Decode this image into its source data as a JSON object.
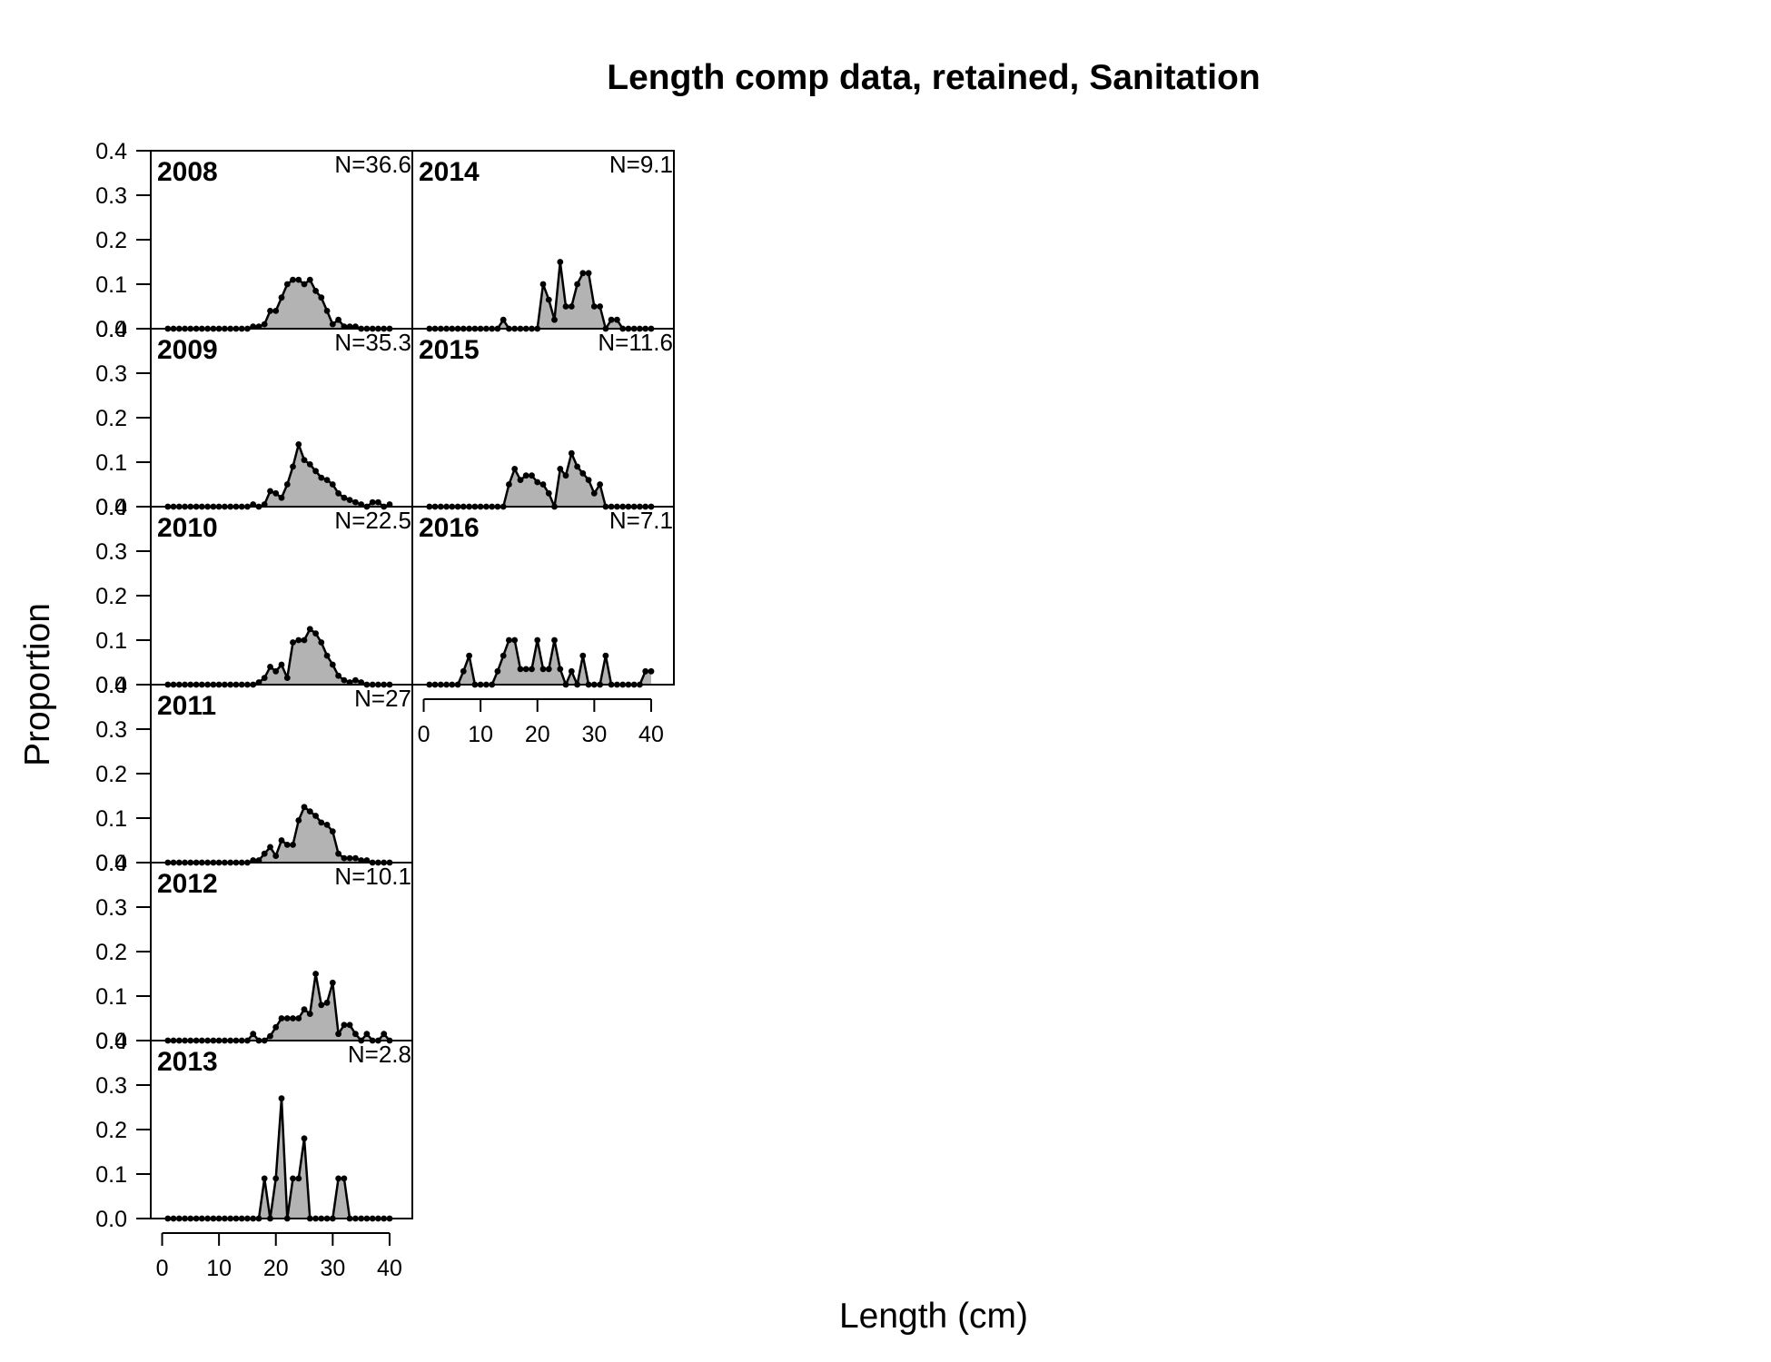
{
  "chart_data": {
    "type": "area",
    "title": "Length comp data, retained, Sanitation",
    "xlabel": "Length (cm)",
    "ylabel": "Proportion",
    "xlim": [
      -2,
      44
    ],
    "ylim": [
      0,
      0.4
    ],
    "x_ticks": [
      "0",
      "10",
      "20",
      "30",
      "40"
    ],
    "y_ticks": [
      "0.0",
      "0.1",
      "0.2",
      "0.3",
      "0.4"
    ],
    "x": [
      1,
      2,
      3,
      4,
      5,
      6,
      7,
      8,
      9,
      10,
      11,
      12,
      13,
      14,
      15,
      16,
      17,
      18,
      19,
      20,
      21,
      22,
      23,
      24,
      25,
      26,
      27,
      28,
      29,
      30,
      31,
      32,
      33,
      34,
      35,
      36,
      37,
      38,
      39,
      40
    ],
    "colors": {
      "fill": "#b3b3b3",
      "line": "#000000"
    },
    "panels": [
      {
        "year": "2008",
        "n": "N=36.6",
        "values": [
          0,
          0,
          0,
          0,
          0,
          0,
          0,
          0,
          0,
          0,
          0,
          0,
          0,
          0,
          0,
          0.005,
          0.005,
          0.01,
          0.04,
          0.04,
          0.07,
          0.1,
          0.11,
          0.11,
          0.1,
          0.11,
          0.085,
          0.07,
          0.04,
          0.01,
          0.02,
          0.005,
          0.005,
          0.005,
          0,
          0,
          0,
          0,
          0,
          0
        ]
      },
      {
        "year": "2009",
        "n": "N=35.3",
        "values": [
          0,
          0,
          0,
          0,
          0,
          0,
          0,
          0,
          0,
          0,
          0,
          0,
          0,
          0,
          0,
          0.005,
          0,
          0.005,
          0.035,
          0.03,
          0.02,
          0.05,
          0.09,
          0.14,
          0.105,
          0.095,
          0.08,
          0.065,
          0.06,
          0.05,
          0.03,
          0.02,
          0.015,
          0.01,
          0.005,
          0,
          0.01,
          0.01,
          0,
          0.005
        ]
      },
      {
        "year": "2010",
        "n": "N=22.5",
        "values": [
          0,
          0,
          0,
          0,
          0,
          0,
          0,
          0,
          0,
          0,
          0,
          0,
          0,
          0,
          0,
          0,
          0.005,
          0.015,
          0.04,
          0.03,
          0.045,
          0.015,
          0.095,
          0.1,
          0.1,
          0.125,
          0.115,
          0.095,
          0.065,
          0.045,
          0.02,
          0.01,
          0.005,
          0.01,
          0.005,
          0,
          0,
          0,
          0,
          0
        ]
      },
      {
        "year": "2011",
        "n": "N=27",
        "values": [
          0,
          0,
          0,
          0,
          0,
          0,
          0,
          0,
          0,
          0,
          0,
          0,
          0,
          0,
          0,
          0.005,
          0.005,
          0.02,
          0.035,
          0.015,
          0.05,
          0.04,
          0.04,
          0.095,
          0.125,
          0.115,
          0.105,
          0.09,
          0.085,
          0.07,
          0.02,
          0.01,
          0.01,
          0.01,
          0.005,
          0.005,
          0,
          0,
          0,
          0
        ]
      },
      {
        "year": "2012",
        "n": "N=10.1",
        "values": [
          0,
          0,
          0,
          0,
          0,
          0,
          0,
          0,
          0,
          0,
          0,
          0,
          0,
          0,
          0,
          0.015,
          0,
          0,
          0.01,
          0.03,
          0.05,
          0.05,
          0.05,
          0.05,
          0.07,
          0.06,
          0.15,
          0.08,
          0.085,
          0.13,
          0.015,
          0.035,
          0.035,
          0.015,
          0,
          0.015,
          0,
          0,
          0.015,
          0
        ]
      },
      {
        "year": "2013",
        "n": "N=2.8",
        "values": [
          0,
          0,
          0,
          0,
          0,
          0,
          0,
          0,
          0,
          0,
          0,
          0,
          0,
          0,
          0,
          0,
          0,
          0.09,
          0,
          0.09,
          0.27,
          0,
          0.09,
          0.09,
          0.18,
          0,
          0,
          0,
          0,
          0,
          0.09,
          0.09,
          0,
          0,
          0,
          0,
          0,
          0,
          0,
          0
        ]
      },
      {
        "year": "2014",
        "n": "N=9.1",
        "values": [
          0,
          0,
          0,
          0,
          0,
          0,
          0,
          0,
          0,
          0,
          0,
          0,
          0,
          0.02,
          0,
          0,
          0,
          0,
          0,
          0,
          0.1,
          0.065,
          0.02,
          0.15,
          0.05,
          0.05,
          0.1,
          0.125,
          0.125,
          0.05,
          0.05,
          0,
          0.02,
          0.02,
          0,
          0,
          0,
          0,
          0,
          0
        ]
      },
      {
        "year": "2015",
        "n": "N=11.6",
        "values": [
          0,
          0,
          0,
          0,
          0,
          0,
          0,
          0,
          0,
          0,
          0,
          0,
          0,
          0,
          0.05,
          0.085,
          0.06,
          0.07,
          0.07,
          0.055,
          0.05,
          0.03,
          0,
          0.085,
          0.07,
          0.12,
          0.09,
          0.075,
          0.06,
          0.03,
          0.05,
          0,
          0,
          0,
          0,
          0,
          0,
          0,
          0,
          0
        ]
      },
      {
        "year": "2016",
        "n": "N=7.1",
        "values": [
          0,
          0,
          0,
          0,
          0,
          0,
          0.03,
          0.065,
          0,
          0,
          0,
          0,
          0.03,
          0.065,
          0.1,
          0.1,
          0.035,
          0.035,
          0.035,
          0.1,
          0.035,
          0.035,
          0.1,
          0.035,
          0,
          0.03,
          0,
          0.065,
          0,
          0,
          0,
          0.065,
          0,
          0,
          0,
          0,
          0,
          0,
          0.03,
          0.03
        ]
      }
    ]
  }
}
